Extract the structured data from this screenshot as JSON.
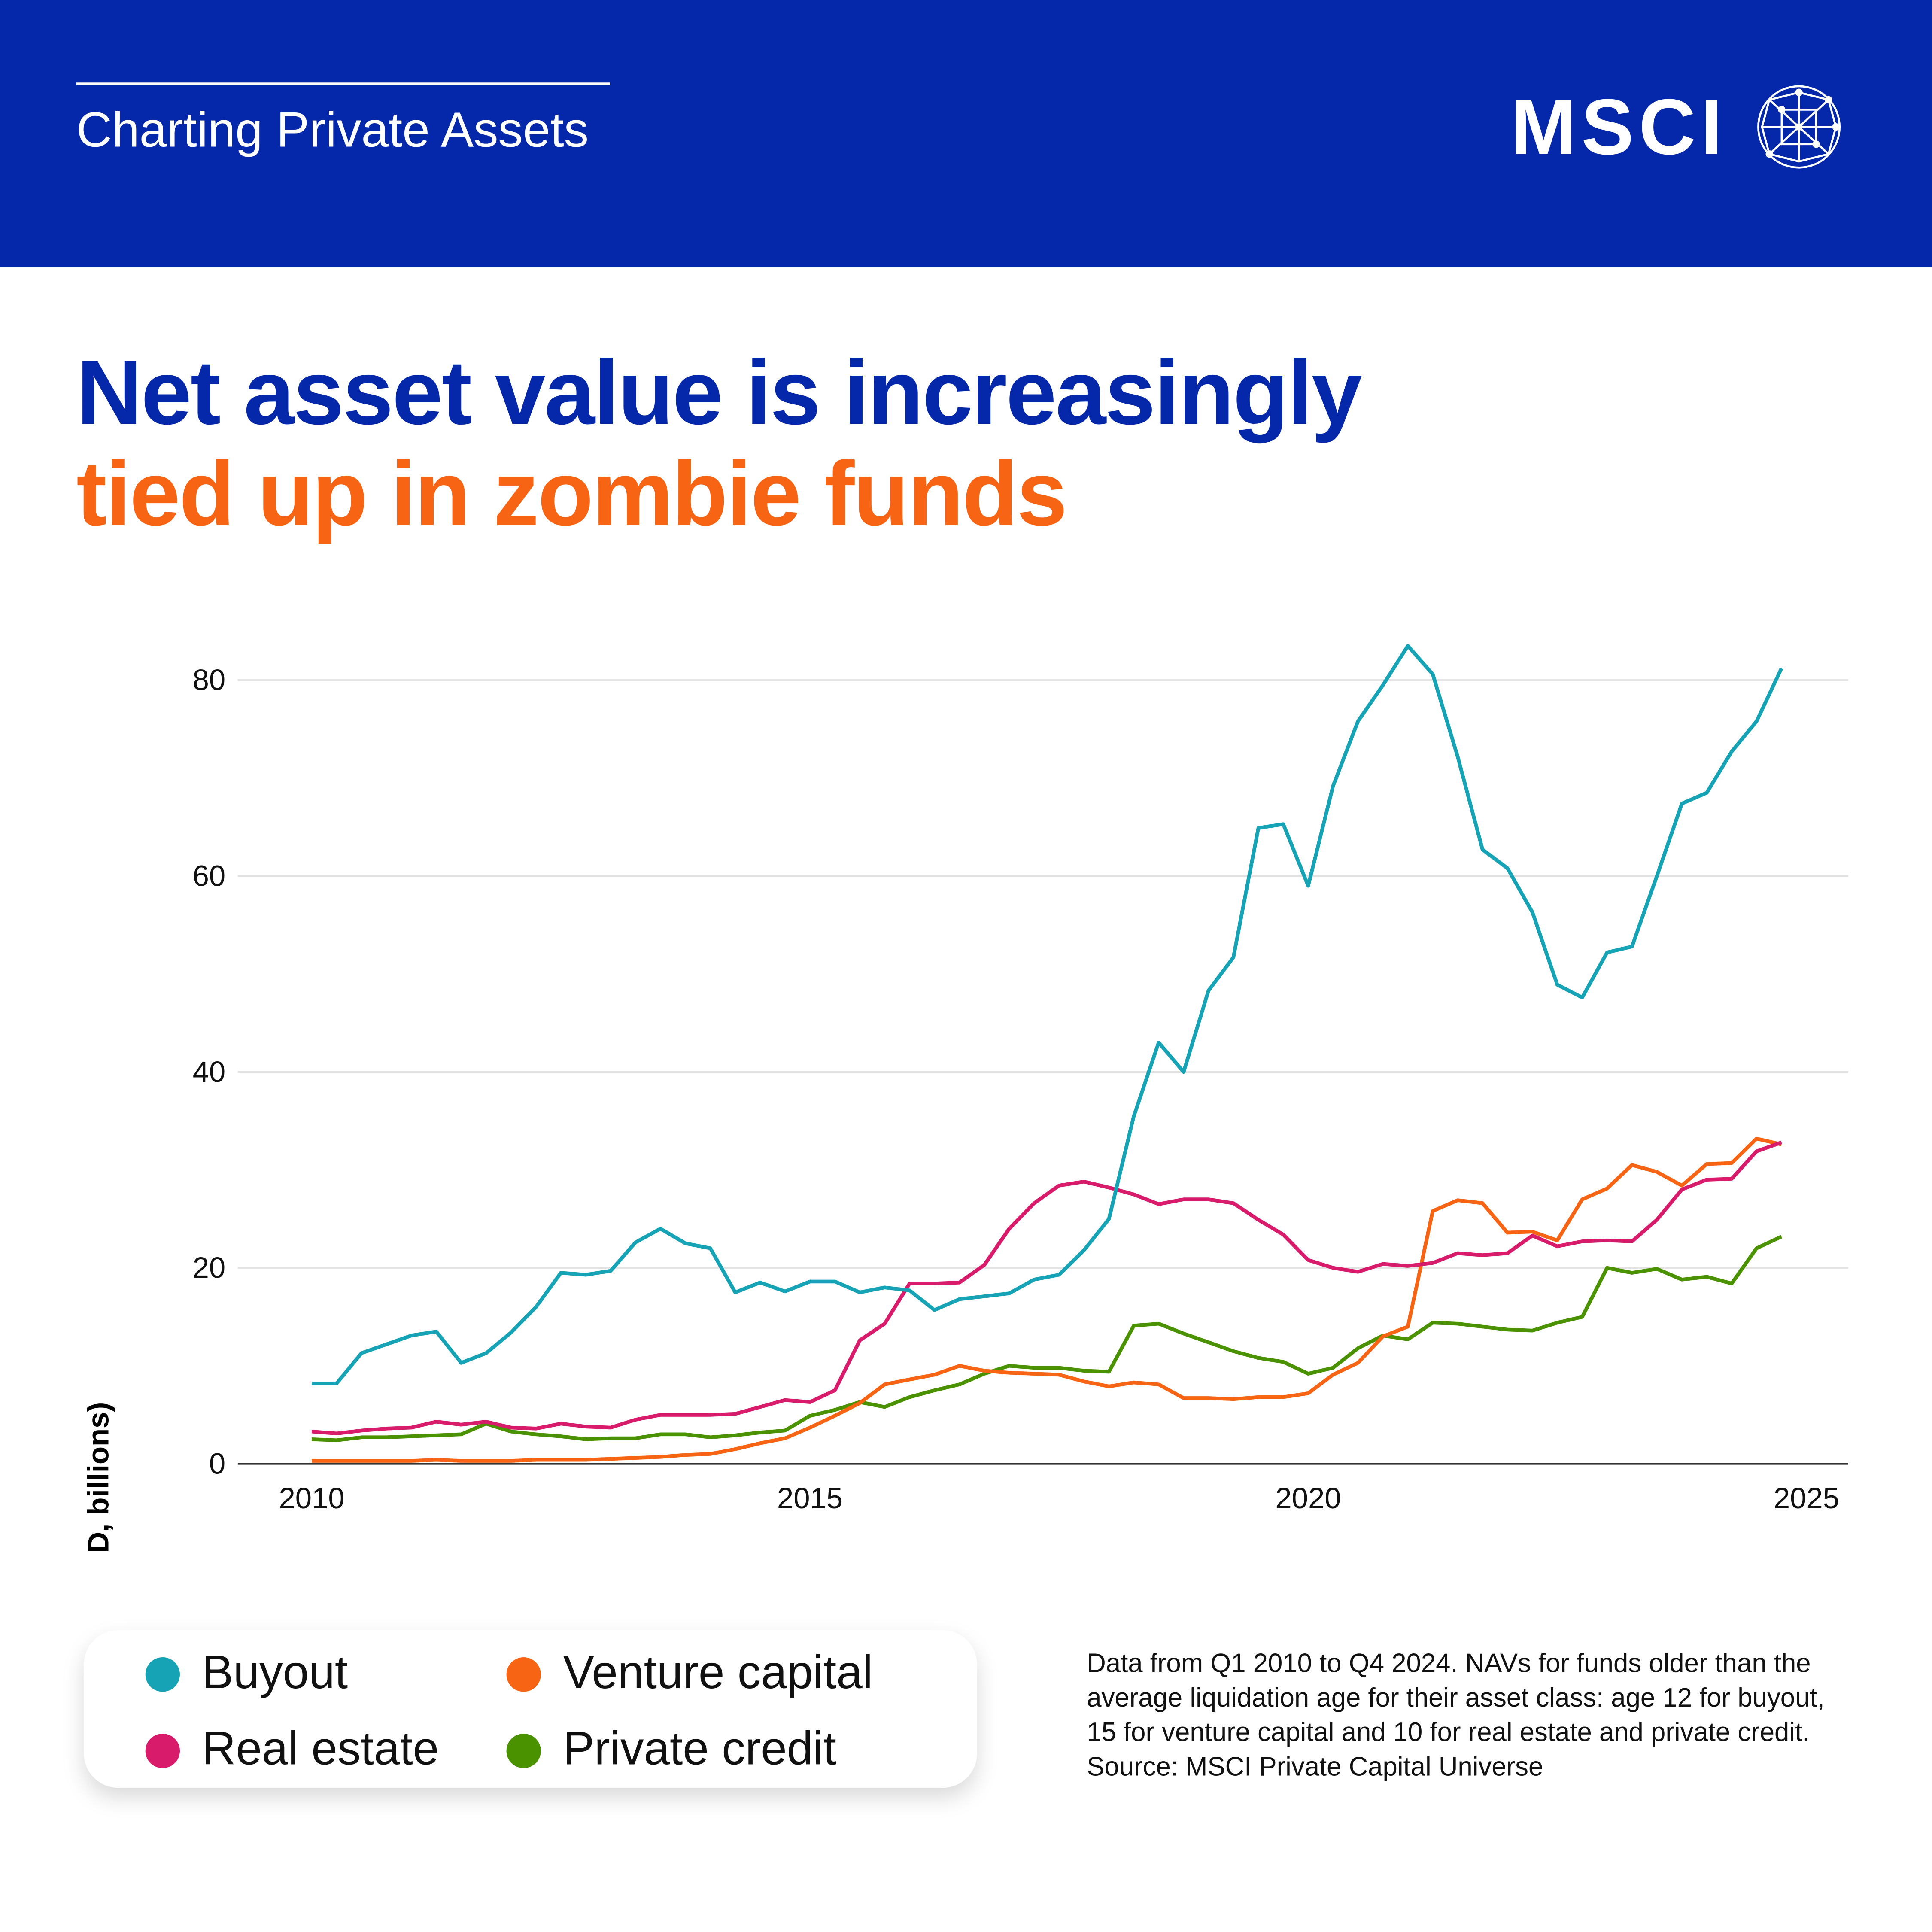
{
  "header": {
    "series_title": "Charting Private Assets",
    "logo_text": "MSCI"
  },
  "headline": {
    "line1": "Net asset value is increasingly",
    "line2": "tied up in zombie funds"
  },
  "footnote": "Data from Q1 2010 to Q4 2024. NAVs for funds older than the average liquidation age for their asset class: age 12 for buyout, 15 for venture capital and 10 for real estate and private credit. Source: MSCI Private Capital Universe",
  "colors": {
    "brand_blue": "#0527AA",
    "accent_orange": "#F76414"
  },
  "chart_data": {
    "type": "line",
    "title": "Net asset value is increasingly tied up in zombie funds",
    "xlabel": "",
    "ylabel": "NAV in old funds (USD, billions)",
    "xlim": [
      2009.75,
      2025.3
    ],
    "ylim": [
      0,
      80
    ],
    "x_start": 2010,
    "x_step": 0.25,
    "xticks": [
      "2010",
      "2015",
      "2020",
      "2025"
    ],
    "xtick_values": [
      2010,
      2015,
      2020,
      2025
    ],
    "yticks": [
      "0",
      "20",
      "40",
      "60",
      "80"
    ],
    "ytick_values": [
      0,
      20,
      40,
      60,
      80
    ],
    "grid": true,
    "legend_placement": "bottom-left",
    "series": [
      {
        "name": "Buyout",
        "color": "#16A3B6",
        "values": [
          8.2,
          8.2,
          11.3,
          12.2,
          13.1,
          13.5,
          10.3,
          11.3,
          13.4,
          16,
          19.5,
          19.3,
          19.7,
          22.6,
          24,
          22.5,
          22,
          17.5,
          18.5,
          17.6,
          18.6,
          18.6,
          17.5,
          18,
          17.7,
          15.7,
          16.8,
          17.1,
          17.4,
          18.8,
          19.3,
          21.8,
          25,
          35.5,
          43,
          40,
          48.3,
          51.7,
          64.9,
          65.3,
          59,
          69.2,
          75.8,
          79.5,
          83.5,
          80.6,
          72.2,
          62.7,
          60.8,
          56.3,
          48.9,
          47.6,
          52.2,
          52.8,
          60,
          67.4,
          68.5,
          72.7,
          75.8,
          81.2
        ]
      },
      {
        "name": "Venture capital",
        "color": "#F76414",
        "values": [
          0.3,
          0.3,
          0.3,
          0.3,
          0.3,
          0.4,
          0.3,
          0.3,
          0.3,
          0.4,
          0.4,
          0.4,
          0.5,
          0.6,
          0.7,
          0.9,
          1.0,
          1.5,
          2.1,
          2.6,
          3.7,
          4.9,
          6.2,
          8.1,
          8.6,
          9.1,
          10,
          9.5,
          9.3,
          9.2,
          9.1,
          8.4,
          7.9,
          8.3,
          8.1,
          6.7,
          6.7,
          6.6,
          6.8,
          6.8,
          7.2,
          9.1,
          10.3,
          13,
          14,
          25.8,
          26.9,
          26.6,
          23.6,
          23.7,
          22.8,
          27,
          28.1,
          30.5,
          29.8,
          28.4,
          30.6,
          30.7,
          33.2,
          32.6
        ]
      },
      {
        "name": "Real estate",
        "color": "#D81B6A",
        "values": [
          3.3,
          3.1,
          3.4,
          3.6,
          3.7,
          4.3,
          4.0,
          4.3,
          3.7,
          3.6,
          4.1,
          3.8,
          3.7,
          4.5,
          5.0,
          5.0,
          5.0,
          5.1,
          5.8,
          6.5,
          6.3,
          7.5,
          12.6,
          14.3,
          18.4,
          18.4,
          18.5,
          20.3,
          24,
          26.6,
          28.4,
          28.8,
          28.2,
          27.5,
          26.5,
          27,
          27,
          26.6,
          24.9,
          23.4,
          20.8,
          20,
          19.6,
          20.4,
          20.2,
          20.5,
          21.5,
          21.3,
          21.5,
          23.3,
          22.2,
          22.7,
          22.8,
          22.7,
          24.9,
          28,
          29,
          29.1,
          31.9,
          32.8
        ]
      },
      {
        "name": "Private credit",
        "color": "#4A9200",
        "values": [
          2.5,
          2.4,
          2.7,
          2.7,
          2.8,
          2.9,
          3.0,
          4.1,
          3.3,
          3.0,
          2.8,
          2.5,
          2.6,
          2.6,
          3.0,
          3.0,
          2.7,
          2.9,
          3.2,
          3.4,
          4.9,
          5.5,
          6.3,
          5.8,
          6.8,
          7.5,
          8.1,
          9.2,
          10,
          9.8,
          9.8,
          9.5,
          9.4,
          14.1,
          14.3,
          13.3,
          12.4,
          11.5,
          10.8,
          10.4,
          9.2,
          9.8,
          11.8,
          13.1,
          12.7,
          14.4,
          14.3,
          14,
          13.7,
          13.6,
          14.4,
          15,
          20,
          19.5,
          19.9,
          18.8,
          19.1,
          18.4,
          22,
          23.2
        ]
      }
    ]
  }
}
